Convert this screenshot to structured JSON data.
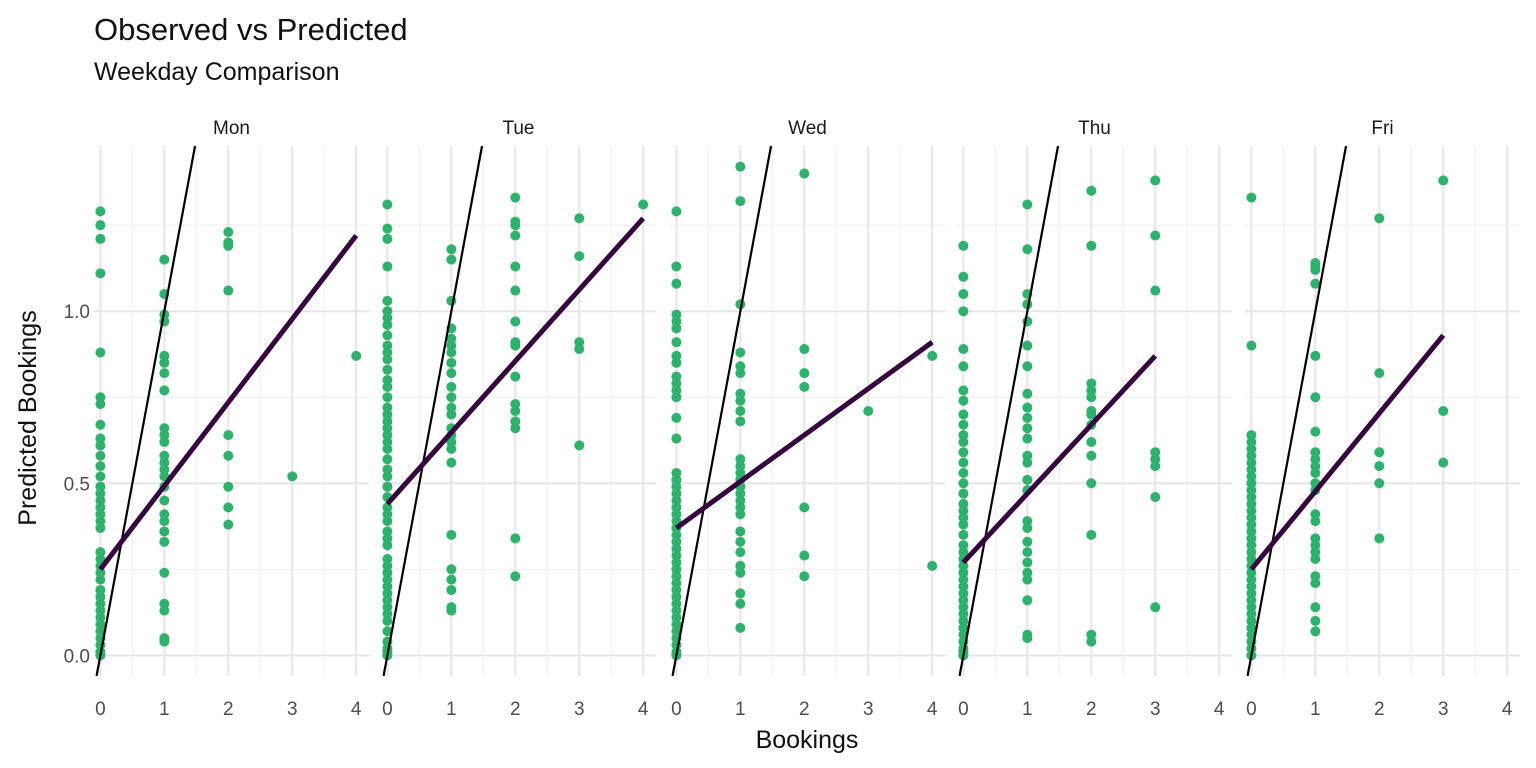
{
  "chart_data": {
    "type": "scatter",
    "title": "Observed vs Predicted",
    "subtitle": "Weekday Comparison",
    "xlabel": "Bookings",
    "ylabel": "Predicted Bookings",
    "xlim": [
      -0.1,
      4.2
    ],
    "ylim": [
      -0.06,
      1.48
    ],
    "x_ticks": [
      0,
      1,
      2,
      3,
      4
    ],
    "y_ticks": [
      0.0,
      0.5,
      1.0
    ],
    "y_tick_labels": [
      "0.0",
      "0.5",
      "1.0"
    ],
    "grid": true,
    "point_color": "#2DB16C",
    "fit_line_color": "#36063F",
    "reference_line_color": "#000000",
    "reference_line": {
      "description": "y = x",
      "slope": 1,
      "intercept": 0
    },
    "panels": [
      {
        "label": "Mon",
        "fit_line": [
          [
            0,
            0.25
          ],
          [
            4,
            1.22
          ]
        ],
        "points": [
          {
            "x": 0,
            "y": [
              1.29,
              1.25,
              1.21,
              1.11,
              0.88,
              0.75,
              0.73,
              0.67,
              0.63,
              0.61,
              0.58,
              0.55,
              0.52,
              0.49,
              0.47,
              0.45,
              0.43,
              0.41,
              0.39,
              0.37,
              0.3,
              0.28,
              0.26,
              0.24,
              0.22,
              0.19,
              0.17,
              0.15,
              0.13,
              0.11,
              0.09,
              0.07,
              0.05,
              0.03,
              0.01,
              0.0
            ]
          },
          {
            "x": 1,
            "y": [
              1.15,
              1.05,
              0.99,
              0.97,
              0.87,
              0.85,
              0.82,
              0.77,
              0.66,
              0.64,
              0.62,
              0.58,
              0.56,
              0.54,
              0.52,
              0.49,
              0.45,
              0.41,
              0.39,
              0.36,
              0.33,
              0.24,
              0.15,
              0.13,
              0.05,
              0.04
            ]
          },
          {
            "x": 2,
            "y": [
              1.23,
              1.2,
              1.19,
              1.06,
              0.64,
              0.58,
              0.49,
              0.43,
              0.38
            ]
          },
          {
            "x": 3,
            "y": [
              0.52
            ]
          },
          {
            "x": 4,
            "y": [
              0.87
            ]
          }
        ]
      },
      {
        "label": "Tue",
        "fit_line": [
          [
            0,
            0.44
          ],
          [
            4,
            1.27
          ]
        ],
        "points": [
          {
            "x": 0,
            "y": [
              1.31,
              1.24,
              1.21,
              1.13,
              1.03,
              1.0,
              0.98,
              0.96,
              0.93,
              0.9,
              0.88,
              0.86,
              0.83,
              0.8,
              0.78,
              0.75,
              0.72,
              0.7,
              0.68,
              0.66,
              0.64,
              0.62,
              0.6,
              0.57,
              0.54,
              0.52,
              0.49,
              0.46,
              0.43,
              0.41,
              0.39,
              0.36,
              0.34,
              0.32,
              0.28,
              0.26,
              0.24,
              0.22,
              0.2,
              0.18,
              0.16,
              0.14,
              0.12,
              0.1,
              0.07,
              0.04,
              0.02,
              0.01,
              0.0
            ]
          },
          {
            "x": 1,
            "y": [
              1.18,
              1.15,
              1.03,
              0.95,
              0.92,
              0.9,
              0.88,
              0.85,
              0.82,
              0.78,
              0.75,
              0.72,
              0.7,
              0.66,
              0.64,
              0.62,
              0.6,
              0.56,
              0.35,
              0.25,
              0.22,
              0.19,
              0.14,
              0.13
            ]
          },
          {
            "x": 2,
            "y": [
              1.33,
              1.26,
              1.25,
              1.22,
              1.13,
              1.06,
              0.97,
              0.91,
              0.9,
              0.81,
              0.73,
              0.71,
              0.68,
              0.66,
              0.34,
              0.23
            ]
          },
          {
            "x": 3,
            "y": [
              1.27,
              1.16,
              0.91,
              0.89,
              0.61
            ]
          },
          {
            "x": 4,
            "y": [
              1.31
            ]
          }
        ]
      },
      {
        "label": "Wed",
        "fit_line": [
          [
            0,
            0.37
          ],
          [
            4,
            0.91
          ]
        ],
        "points": [
          {
            "x": 0,
            "y": [
              1.29,
              1.13,
              1.08,
              0.99,
              0.97,
              0.95,
              0.91,
              0.87,
              0.85,
              0.81,
              0.79,
              0.77,
              0.75,
              0.69,
              0.63,
              0.53,
              0.51,
              0.49,
              0.47,
              0.45,
              0.43,
              0.41,
              0.39,
              0.37,
              0.35,
              0.33,
              0.31,
              0.29,
              0.27,
              0.25,
              0.23,
              0.21,
              0.19,
              0.17,
              0.15,
              0.13,
              0.11,
              0.09,
              0.07,
              0.05,
              0.03,
              0.01,
              0.0
            ]
          },
          {
            "x": 1,
            "y": [
              1.42,
              1.32,
              1.02,
              0.88,
              0.84,
              0.82,
              0.76,
              0.74,
              0.71,
              0.68,
              0.57,
              0.55,
              0.53,
              0.51,
              0.49,
              0.47,
              0.45,
              0.43,
              0.41,
              0.36,
              0.33,
              0.3,
              0.26,
              0.24,
              0.18,
              0.15,
              0.08
            ]
          },
          {
            "x": 2,
            "y": [
              1.4,
              0.89,
              0.82,
              0.78,
              0.43,
              0.29,
              0.23
            ]
          },
          {
            "x": 3,
            "y": [
              0.71
            ]
          },
          {
            "x": 4,
            "y": [
              0.87,
              0.26
            ]
          }
        ]
      },
      {
        "label": "Thu",
        "fit_line": [
          [
            0,
            0.27
          ],
          [
            3,
            0.87
          ]
        ],
        "points": [
          {
            "x": 0,
            "y": [
              1.19,
              1.1,
              1.05,
              1.0,
              0.89,
              0.84,
              0.77,
              0.74,
              0.7,
              0.67,
              0.64,
              0.62,
              0.59,
              0.56,
              0.53,
              0.5,
              0.47,
              0.44,
              0.42,
              0.4,
              0.38,
              0.35,
              0.32,
              0.3,
              0.28,
              0.26,
              0.24,
              0.22,
              0.2,
              0.18,
              0.16,
              0.14,
              0.12,
              0.1,
              0.08,
              0.06,
              0.04,
              0.02,
              0.01,
              0.0
            ]
          },
          {
            "x": 1,
            "y": [
              1.31,
              1.18,
              1.05,
              1.02,
              0.97,
              0.9,
              0.84,
              0.76,
              0.72,
              0.69,
              0.66,
              0.63,
              0.58,
              0.56,
              0.51,
              0.48,
              0.39,
              0.37,
              0.33,
              0.3,
              0.27,
              0.24,
              0.22,
              0.16,
              0.06,
              0.05
            ]
          },
          {
            "x": 2,
            "y": [
              1.35,
              1.19,
              0.79,
              0.77,
              0.75,
              0.71,
              0.7,
              0.67,
              0.62,
              0.58,
              0.5,
              0.35,
              0.06,
              0.04
            ]
          },
          {
            "x": 3,
            "y": [
              1.38,
              1.22,
              1.06,
              0.59,
              0.57,
              0.55,
              0.46,
              0.14
            ]
          }
        ]
      },
      {
        "label": "Fri",
        "fit_line": [
          [
            0,
            0.25
          ],
          [
            3,
            0.93
          ]
        ],
        "points": [
          {
            "x": 0,
            "y": [
              1.33,
              0.9,
              0.64,
              0.62,
              0.6,
              0.58,
              0.56,
              0.54,
              0.52,
              0.5,
              0.48,
              0.46,
              0.44,
              0.42,
              0.4,
              0.38,
              0.36,
              0.34,
              0.32,
              0.3,
              0.28,
              0.26,
              0.24,
              0.22,
              0.2,
              0.18,
              0.16,
              0.14,
              0.12,
              0.1,
              0.08,
              0.06,
              0.04,
              0.02,
              0.0
            ]
          },
          {
            "x": 1,
            "y": [
              1.14,
              1.13,
              1.12,
              1.08,
              0.87,
              0.75,
              0.65,
              0.59,
              0.57,
              0.55,
              0.53,
              0.5,
              0.48,
              0.41,
              0.39,
              0.34,
              0.32,
              0.3,
              0.28,
              0.23,
              0.21,
              0.14,
              0.1,
              0.07
            ]
          },
          {
            "x": 2,
            "y": [
              1.27,
              0.82,
              0.59,
              0.55,
              0.5,
              0.34
            ]
          },
          {
            "x": 3,
            "y": [
              1.38,
              0.71,
              0.56
            ]
          }
        ]
      }
    ]
  }
}
